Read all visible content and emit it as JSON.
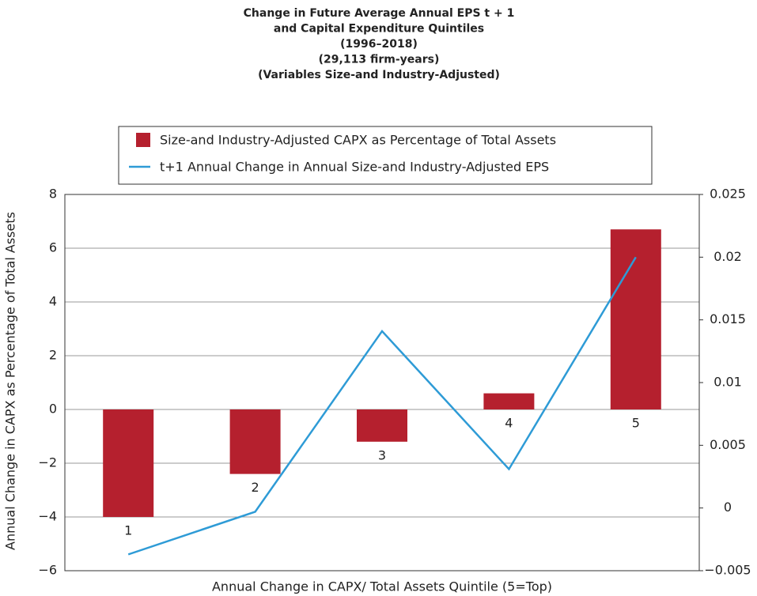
{
  "chart_data": {
    "type": "bar_line",
    "title": [
      "Change in Future Average Annual EPS t + 1",
      "and Capital Expenditure Quintiles",
      "(1996–2018)",
      "(29,113 firm-years)",
      "(Variables Size-and Industry-Adjusted)"
    ],
    "x_label": "Annual Change in CAPX/ Total Assets Quintile (5=Top)",
    "y_label": "Annual Change in CAPX as Percentage of Total Assets",
    "categories": [
      "1",
      "2",
      "3",
      "4",
      "5"
    ],
    "series": [
      {
        "name": "Size-and Industry-Adjusted CAPX as Percentage of Total Assets",
        "type": "bar",
        "color": "#b5202e",
        "values": [
          -4.0,
          -2.4,
          -1.2,
          0.6,
          6.7
        ]
      },
      {
        "name": "t+1 Annual Change in Annual Size-and Industry-Adjusted EPS",
        "type": "line",
        "axis": "y2",
        "color": "#2e9bd6",
        "values": [
          -0.0037,
          -0.0003,
          0.0141,
          0.0031,
          0.02
        ]
      }
    ],
    "ylim": [
      -6,
      8
    ],
    "yticks": [
      {
        "value": -6,
        "label": "−6"
      },
      {
        "value": -4,
        "label": "−4"
      },
      {
        "value": -2,
        "label": "−2"
      },
      0,
      2,
      4,
      6,
      8
    ],
    "y2lim": [
      -0.005,
      0.025
    ],
    "y2ticks": [
      {
        "value": -0.005,
        "label": "−0.005"
      },
      0,
      0.005,
      0.01,
      0.015,
      0.02,
      0.025
    ],
    "grid": true,
    "legend": "top"
  }
}
